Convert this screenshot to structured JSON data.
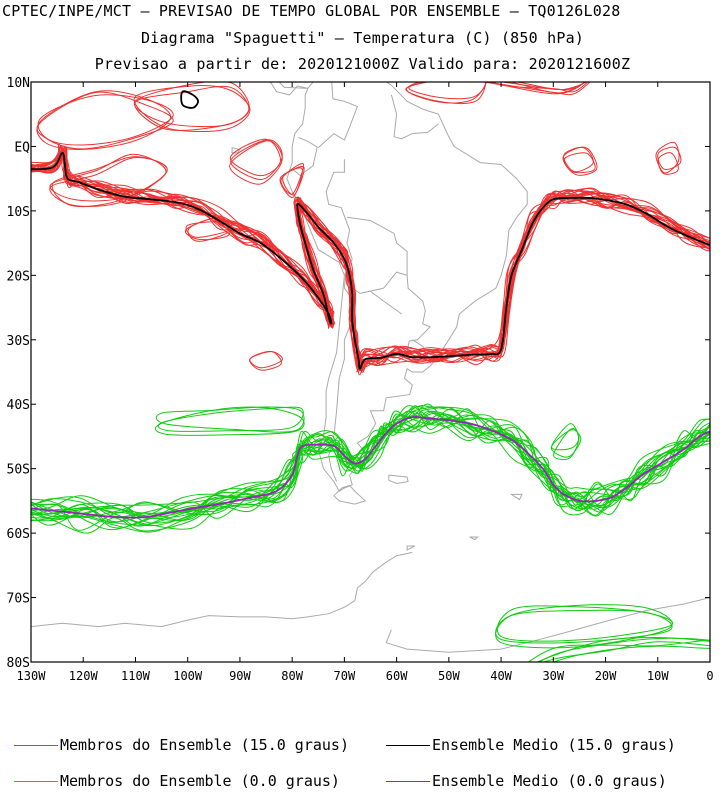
{
  "header": {
    "line1": "CPTEC/INPE/MCT – PREVISAO DE TEMPO GLOBAL POR ENSEMBLE – TQ0126L028",
    "line2": "Diagrama \"Spaguetti\" – Temperatura (C) (850 hPa)",
    "line3": "Previsao a partir de: 2020121000Z  Valido para: 2020121600Z"
  },
  "map": {
    "lat_labels": [
      "10N",
      "EQ",
      "10S",
      "20S",
      "30S",
      "40S",
      "50S",
      "60S",
      "70S",
      "80S"
    ],
    "lon_labels": [
      "130W",
      "120W",
      "110W",
      "100W",
      "90W",
      "80W",
      "70W",
      "60W",
      "50W",
      "40W",
      "30W",
      "20W",
      "10W",
      "0"
    ],
    "lon_range": [
      -130,
      0
    ],
    "lat_range": [
      -80,
      10
    ],
    "colors": {
      "members_15": "#ee3333",
      "mean_15": "#000000",
      "members_0": "#11cc11",
      "mean_0": "#9922bb",
      "coast": "#aaaaaa"
    }
  },
  "legend": {
    "members_15": "Membros do Ensemble (15.0 graus)",
    "mean_15": "Ensemble Medio (15.0 graus)",
    "members_0": "Membros do Ensemble (0.0 graus)",
    "mean_0": "Ensemble Medio (0.0 graus)"
  }
}
